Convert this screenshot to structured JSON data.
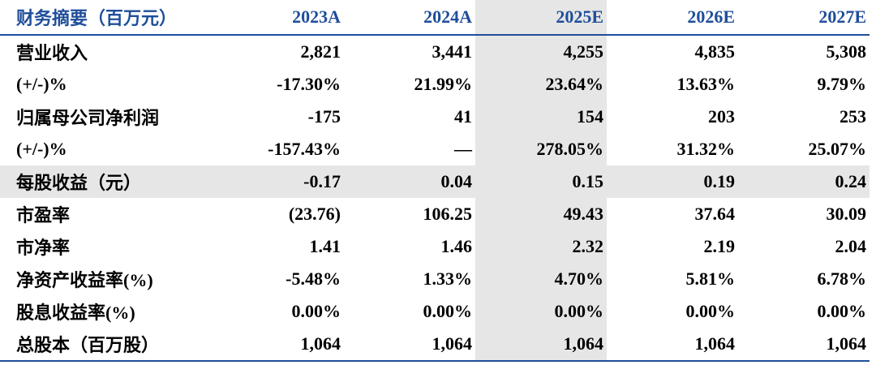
{
  "header": {
    "title": "财务摘要（百万元）",
    "columns": [
      "2023A",
      "2024A",
      "2025E",
      "2026E",
      "2027E"
    ]
  },
  "table": {
    "rows": [
      [
        "营业收入",
        "2,821",
        "3,441",
        "4,255",
        "4,835",
        "5,308"
      ],
      [
        "(+/-)%",
        "-17.30%",
        "21.99%",
        "23.64%",
        "13.63%",
        "9.79%"
      ],
      [
        "归属母公司净利润",
        "-175",
        "41",
        "154",
        "203",
        "253"
      ],
      [
        "(+/-)%",
        "-157.43%",
        "—",
        "278.05%",
        "31.32%",
        "25.07%"
      ],
      [
        "每股收益（元）",
        "-0.17",
        "0.04",
        "0.15",
        "0.19",
        "0.24"
      ],
      [
        "市盈率",
        "(23.76)",
        "106.25",
        "49.43",
        "37.64",
        "30.09"
      ],
      [
        "市净率",
        "1.41",
        "1.46",
        "2.32",
        "2.19",
        "2.04"
      ],
      [
        "净资产收益率(%)",
        "-5.48%",
        "1.33%",
        "4.70%",
        "5.81%",
        "6.78%"
      ],
      [
        "股息收益率(%)",
        "0.00%",
        "0.00%",
        "0.00%",
        "0.00%",
        "0.00%"
      ],
      [
        "总股本（百万股）",
        "1,064",
        "1,064",
        "1,064",
        "1,064",
        "1,064"
      ]
    ]
  }
}
